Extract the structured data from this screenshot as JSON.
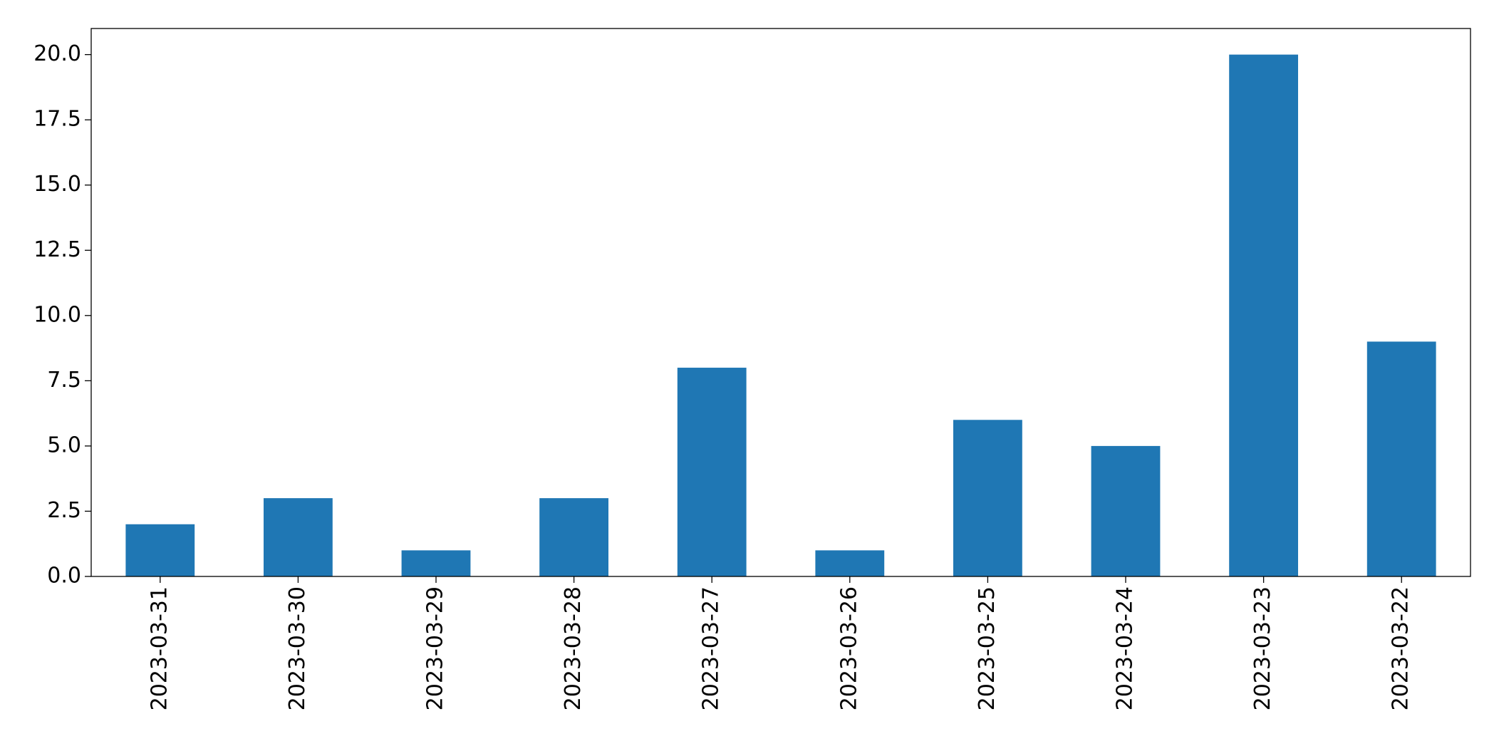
{
  "chart_data": {
    "type": "bar",
    "categories": [
      "2023-03-31",
      "2023-03-30",
      "2023-03-29",
      "2023-03-28",
      "2023-03-27",
      "2023-03-26",
      "2023-03-25",
      "2023-03-24",
      "2023-03-23",
      "2023-03-22"
    ],
    "values": [
      2,
      3,
      1,
      3,
      8,
      1,
      6,
      5,
      20,
      9
    ],
    "color": "#1f77b4",
    "ylim": [
      0,
      21
    ],
    "yticks": [
      {
        "value": 0,
        "label": "0.0"
      },
      {
        "value": 2.5,
        "label": "2.5"
      },
      {
        "value": 5,
        "label": "5.0"
      },
      {
        "value": 7.5,
        "label": "7.5"
      },
      {
        "value": 10,
        "label": "10.0"
      },
      {
        "value": 12.5,
        "label": "12.5"
      },
      {
        "value": 15,
        "label": "15.0"
      },
      {
        "value": 17.5,
        "label": "17.5"
      },
      {
        "value": 20,
        "label": "20.0"
      }
    ],
    "grid": false
  }
}
